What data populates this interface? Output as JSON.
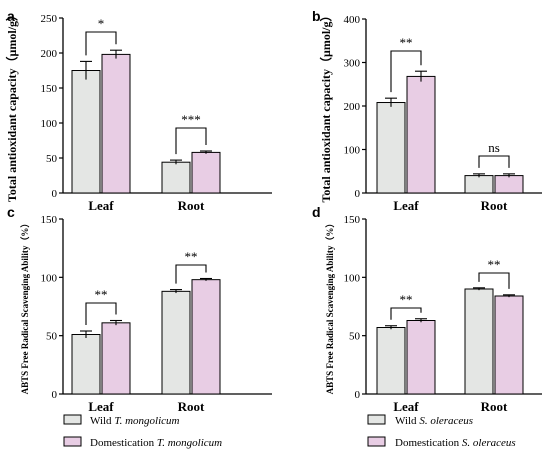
{
  "figure_labels": [
    "a",
    "b",
    "c",
    "d"
  ],
  "colors": {
    "wild": "#e4e6e4",
    "domestication": "#e8cde4",
    "stroke": "#000000"
  },
  "legends": [
    {
      "wild": {
        "prefix": "Wild ",
        "species": "T. mongolicum"
      },
      "domestication": {
        "prefix": "Domestication ",
        "species": "T. mongolicum"
      }
    },
    {
      "wild": {
        "prefix": "Wild ",
        "species": "S. oleraceus"
      },
      "domestication": {
        "prefix": "Domestication ",
        "species": "S. oleraceus"
      }
    }
  ],
  "chart_data": [
    {
      "panel": "a",
      "type": "bar",
      "categories": [
        "Leaf",
        "Root"
      ],
      "ylabel": "Total antioxidant capacity（μmol/g）",
      "ylim": [
        0,
        250
      ],
      "yticks": [
        0,
        50,
        100,
        150,
        200,
        250
      ],
      "series": [
        {
          "values": [
            175,
            44
          ],
          "errors": [
            13,
            3
          ]
        },
        {
          "values": [
            198,
            58
          ],
          "errors": [
            6,
            2
          ]
        }
      ],
      "significance": [
        "*",
        "***"
      ],
      "legend": "none"
    },
    {
      "panel": "b",
      "type": "bar",
      "categories": [
        "Leaf",
        "Root"
      ],
      "ylabel": "Total antioxidant capacity（μmol/g）",
      "ylim": [
        0,
        400
      ],
      "yticks": [
        0,
        100,
        200,
        300,
        400
      ],
      "series": [
        {
          "values": [
            208,
            40
          ],
          "errors": [
            10,
            4
          ]
        },
        {
          "values": [
            268,
            40
          ],
          "errors": [
            12,
            4
          ]
        }
      ],
      "significance": [
        "**",
        "ns"
      ],
      "legend": "none"
    },
    {
      "panel": "c",
      "type": "bar",
      "categories": [
        "Leaf",
        "Root"
      ],
      "ylabel": "ABTS Free Radical Scavenging Ability（%）",
      "ylim": [
        0,
        150
      ],
      "yticks": [
        0,
        50,
        100,
        150
      ],
      "series": [
        {
          "values": [
            51,
            88
          ],
          "errors": [
            3,
            1.5
          ]
        },
        {
          "values": [
            61,
            98
          ],
          "errors": [
            2,
            1
          ]
        }
      ],
      "significance": [
        "**",
        "**"
      ],
      "legend": "bottom"
    },
    {
      "panel": "d",
      "type": "bar",
      "categories": [
        "Leaf",
        "Root"
      ],
      "ylabel": "ABTS Free Radical Scavenging Ability（%）",
      "ylim": [
        0,
        150
      ],
      "yticks": [
        0,
        50,
        100,
        150
      ],
      "series": [
        {
          "values": [
            57,
            90
          ],
          "errors": [
            1.5,
            1
          ]
        },
        {
          "values": [
            63,
            84
          ],
          "errors": [
            1.5,
            1
          ]
        }
      ],
      "significance": [
        "**",
        "**"
      ],
      "legend": "bottom"
    }
  ]
}
